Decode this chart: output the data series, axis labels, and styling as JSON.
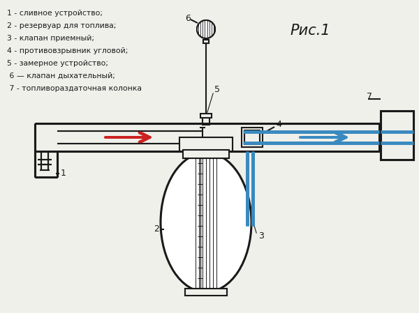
{
  "title": "Рис.1",
  "bg": "#f0f0eb",
  "lc": "#1a1a1a",
  "bc": "#3a8abf",
  "rc": "#cc2222",
  "legend": [
    "1 - сливное устройство;",
    "2 - резервуар для топлива;",
    "3 - клапан приемный;",
    "4 - противовзрывник угловой;",
    "5 - замерное устройство;",
    " 6 — клапан дыхательный;",
    " 7 - топливораздаточная колонка"
  ],
  "lw": 1.5,
  "plw": 2.2
}
